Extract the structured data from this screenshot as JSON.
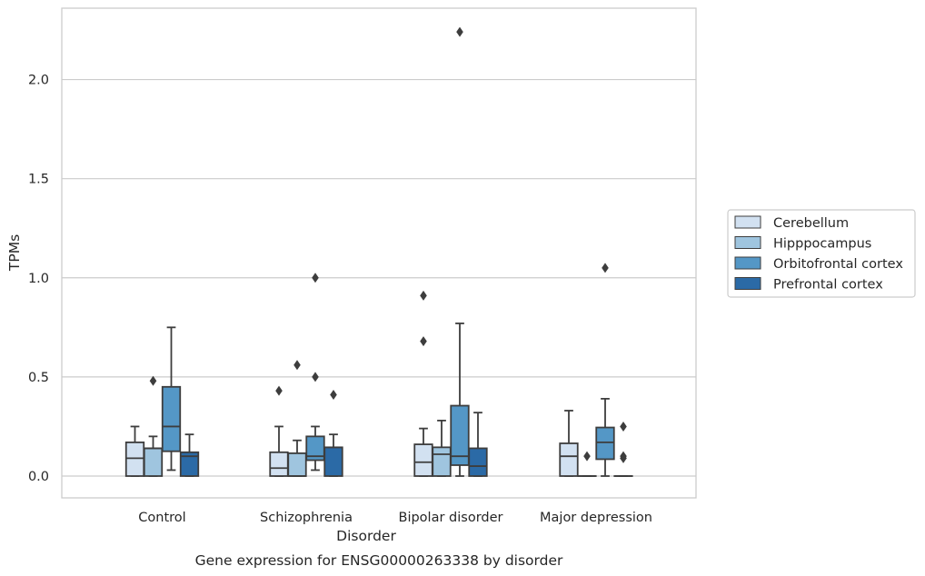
{
  "chart_data": {
    "type": "box",
    "xlabel": "Disorder",
    "ylabel": "TPMs",
    "caption": "Gene expression for ENSG00000263338 by disorder",
    "ylim": [
      -0.11,
      2.36
    ],
    "yticks": [
      "0.0",
      "0.5",
      "1.0",
      "1.5",
      "2.0"
    ],
    "grid": true,
    "legend_position": "right",
    "categories": [
      "Control",
      "Schizophrenia",
      "Bipolar disorder",
      "Major depression"
    ],
    "series": [
      {
        "name": "Cerebellum",
        "color": "#d2e1f1",
        "boxes": [
          {
            "q1": 0.0,
            "median": 0.09,
            "q3": 0.17,
            "whislo": 0.0,
            "whishi": 0.25,
            "fliers": []
          },
          {
            "q1": 0.0,
            "median": 0.04,
            "q3": 0.12,
            "whislo": 0.0,
            "whishi": 0.25,
            "fliers": [
              0.43
            ]
          },
          {
            "q1": 0.0,
            "median": 0.07,
            "q3": 0.16,
            "whislo": 0.0,
            "whishi": 0.24,
            "fliers": [
              0.68,
              0.91
            ]
          },
          {
            "q1": 0.0,
            "median": 0.1,
            "q3": 0.165,
            "whislo": 0.0,
            "whishi": 0.33,
            "fliers": []
          }
        ]
      },
      {
        "name": "Hipppocampus",
        "color": "#9fc5df",
        "boxes": [
          {
            "q1": 0.0,
            "median": 0.14,
            "q3": 0.14,
            "whislo": 0.0,
            "whishi": 0.2,
            "fliers": [
              0.48
            ]
          },
          {
            "q1": 0.0,
            "median": 0.0,
            "q3": 0.115,
            "whislo": 0.0,
            "whishi": 0.18,
            "fliers": [
              0.56
            ]
          },
          {
            "q1": 0.0,
            "median": 0.11,
            "q3": 0.145,
            "whislo": 0.0,
            "whishi": 0.28,
            "fliers": []
          },
          {
            "q1": 0.0,
            "median": 0.0,
            "q3": 0.0,
            "whislo": 0.0,
            "whishi": 0.0,
            "fliers": [
              0.1
            ]
          }
        ]
      },
      {
        "name": "Orbitofrontal cortex",
        "color": "#5497c6",
        "boxes": [
          {
            "q1": 0.125,
            "median": 0.25,
            "q3": 0.45,
            "whislo": 0.03,
            "whishi": 0.75,
            "fliers": []
          },
          {
            "q1": 0.08,
            "median": 0.1,
            "q3": 0.2,
            "whislo": 0.03,
            "whishi": 0.25,
            "fliers": [
              0.5,
              1.0
            ]
          },
          {
            "q1": 0.055,
            "median": 0.1,
            "q3": 0.355,
            "whislo": 0.0,
            "whishi": 0.77,
            "fliers": [
              2.24
            ]
          },
          {
            "q1": 0.085,
            "median": 0.17,
            "q3": 0.245,
            "whislo": 0.0,
            "whishi": 0.39,
            "fliers": [
              1.05
            ]
          }
        ]
      },
      {
        "name": "Prefrontal cortex",
        "color": "#2b6aa6",
        "boxes": [
          {
            "q1": 0.0,
            "median": 0.1,
            "q3": 0.12,
            "whislo": 0.0,
            "whishi": 0.21,
            "fliers": []
          },
          {
            "q1": 0.0,
            "median": 0.145,
            "q3": 0.145,
            "whislo": 0.0,
            "whishi": 0.21,
            "fliers": [
              0.41
            ]
          },
          {
            "q1": 0.0,
            "median": 0.05,
            "q3": 0.14,
            "whislo": 0.0,
            "whishi": 0.32,
            "fliers": []
          },
          {
            "q1": 0.0,
            "median": 0.0,
            "q3": 0.0,
            "whislo": 0.0,
            "whishi": 0.0,
            "fliers": [
              0.1,
              0.09,
              0.25
            ]
          }
        ]
      }
    ]
  }
}
